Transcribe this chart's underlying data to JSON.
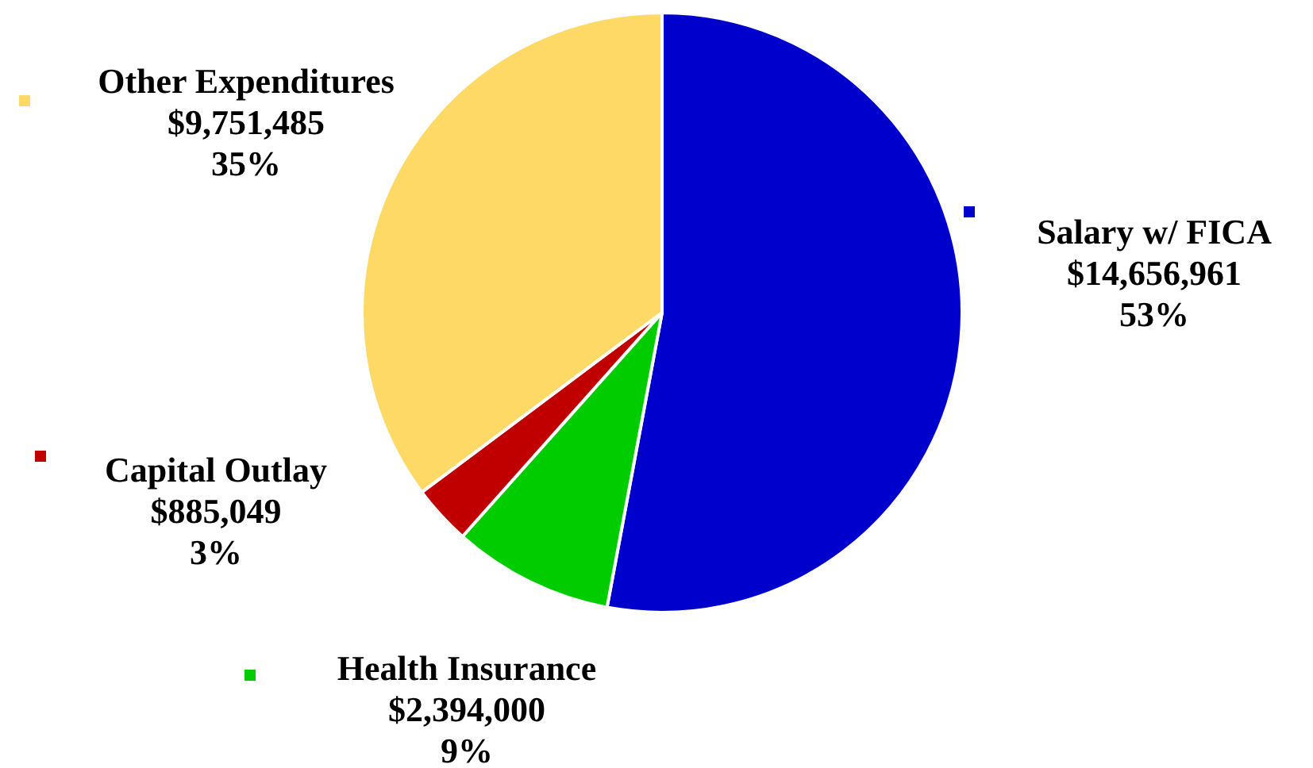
{
  "chart_data": {
    "type": "pie",
    "categories": [
      "Salary w/ FICA",
      "Health Insurance",
      "Capital Outlay",
      "Other Expenditures"
    ],
    "values": [
      14656961,
      2394000,
      885049,
      9751485
    ],
    "colors": [
      "#0000cc",
      "#00cc00",
      "#c00000",
      "#ffd966"
    ],
    "value_labels": [
      "$14,656,961\n53%",
      "$2,394,000\n9%",
      "$885,049\n3%",
      "$9,751,485\n35%"
    ],
    "legend": "left"
  }
}
